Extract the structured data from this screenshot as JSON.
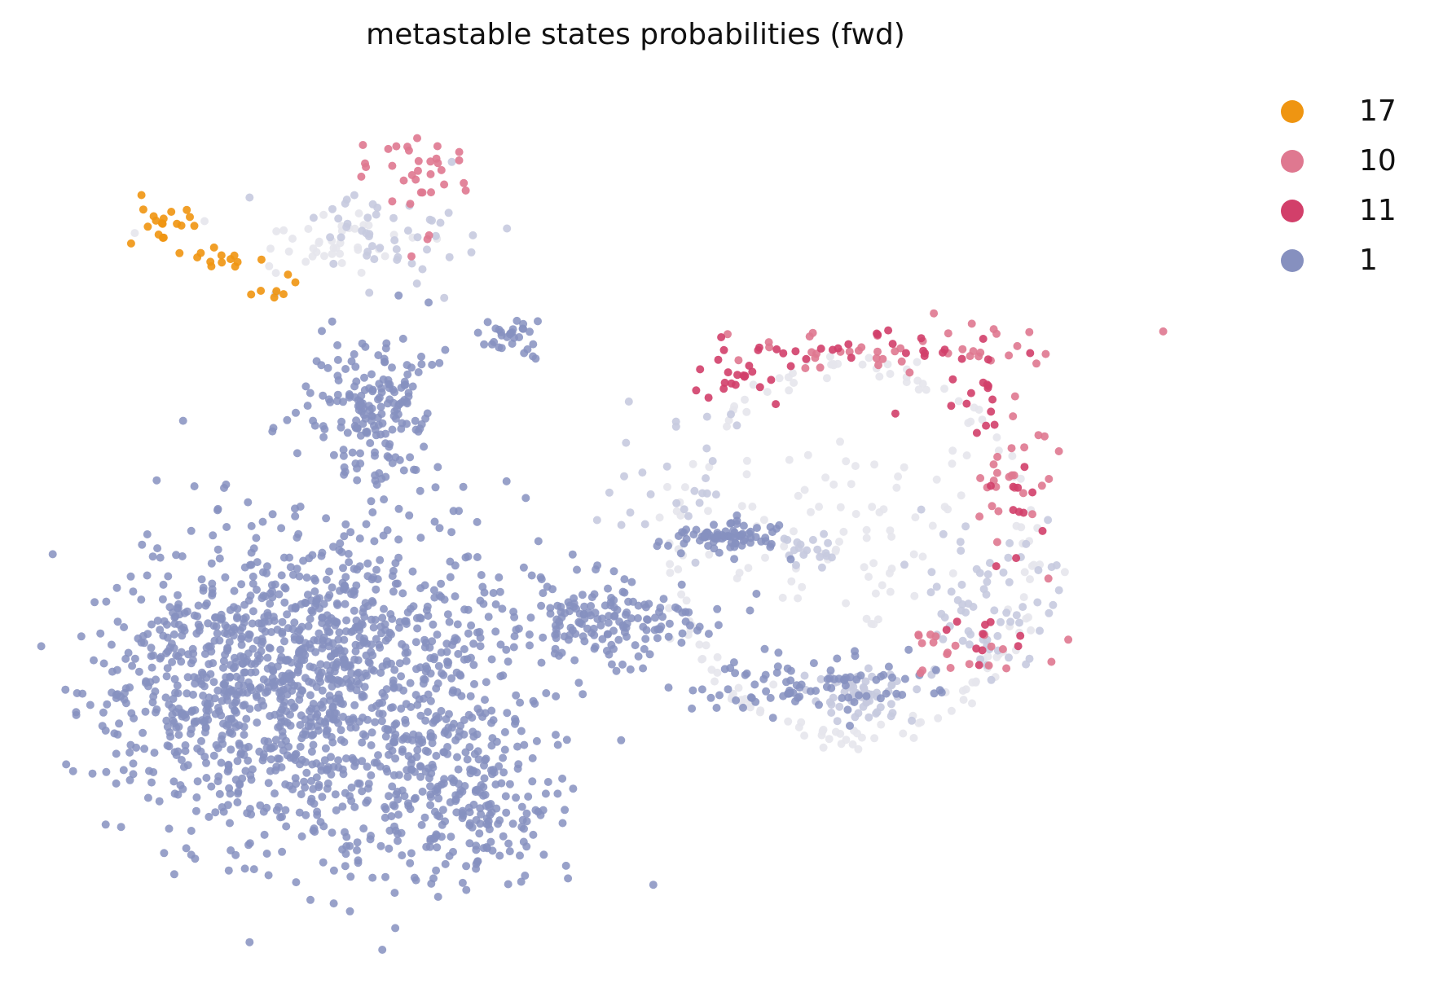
{
  "chart_data": {
    "type": "scatter",
    "title": "metastable states probabilities (fwd)",
    "xlabel": "",
    "ylabel": "",
    "grid": false,
    "legend_placement": "right",
    "legend": [
      {
        "label": "17",
        "color": "#ef9511"
      },
      {
        "label": "10",
        "color": "#df7890"
      },
      {
        "label": "11",
        "color": "#d23f6a"
      },
      {
        "label": "1",
        "color": "#8690bf"
      }
    ],
    "xlim": [
      0,
      100
    ],
    "ylim": [
      0,
      100
    ],
    "series": [
      {
        "name": "17",
        "color": "#ef9511",
        "regions": [
          {
            "cx": 8.2,
            "cy": 80.5,
            "sx": 1.0,
            "sy": 1.5,
            "n": 18
          },
          {
            "cx": 12.5,
            "cy": 76.0,
            "sx": 2.2,
            "sy": 1.0,
            "n": 14
          },
          {
            "cx": 17.5,
            "cy": 73.0,
            "sx": 1.2,
            "sy": 0.6,
            "n": 6
          }
        ]
      },
      {
        "name": "10",
        "color": "#df7890",
        "regions": [
          {
            "cx": 29.5,
            "cy": 86.5,
            "sx": 2.3,
            "sy": 3.5,
            "n": 34
          },
          {
            "cx": 68.0,
            "cy": 66.0,
            "sx": 9.5,
            "sy": 2.0,
            "n": 40
          },
          {
            "cx": 79.5,
            "cy": 54.0,
            "sx": 2.0,
            "sy": 6.0,
            "n": 30
          },
          {
            "cx": 76.0,
            "cy": 33.0,
            "sx": 4.0,
            "sy": 2.0,
            "n": 20
          }
        ]
      },
      {
        "name": "11",
        "color": "#d23f6a",
        "regions": [
          {
            "cx": 56.5,
            "cy": 63.5,
            "sx": 2.0,
            "sy": 1.5,
            "n": 20
          },
          {
            "cx": 67.0,
            "cy": 66.5,
            "sx": 5.5,
            "sy": 1.0,
            "n": 26
          },
          {
            "cx": 76.0,
            "cy": 61.0,
            "sx": 2.0,
            "sy": 2.0,
            "n": 14
          },
          {
            "cx": 80.0,
            "cy": 49.0,
            "sx": 1.0,
            "sy": 5.0,
            "n": 12
          },
          {
            "cx": 78.0,
            "cy": 34.5,
            "sx": 2.0,
            "sy": 1.5,
            "n": 10
          }
        ]
      },
      {
        "name": "1",
        "color": "#8690bf",
        "regions": [
          {
            "cx": 22.0,
            "cy": 30.0,
            "sx": 8.0,
            "sy": 9.5,
            "n": 1100
          },
          {
            "cx": 12.0,
            "cy": 28.0,
            "sx": 4.5,
            "sy": 6.0,
            "n": 260
          },
          {
            "cx": 33.0,
            "cy": 17.0,
            "sx": 5.0,
            "sy": 5.0,
            "n": 240
          },
          {
            "cx": 26.0,
            "cy": 60.0,
            "sx": 2.5,
            "sy": 4.5,
            "n": 180
          },
          {
            "cx": 37.5,
            "cy": 68.0,
            "sx": 1.5,
            "sy": 1.5,
            "n": 30
          },
          {
            "cx": 45.0,
            "cy": 36.0,
            "sx": 4.5,
            "sy": 2.5,
            "n": 170
          },
          {
            "cx": 55.5,
            "cy": 45.5,
            "sx": 2.3,
            "sy": 0.8,
            "n": 80
          },
          {
            "cx": 63.0,
            "cy": 29.0,
            "sx": 5.0,
            "sy": 1.8,
            "n": 90
          }
        ]
      },
      {
        "name": "",
        "color": "#c6cadf",
        "regions": [
          {
            "cx": 67.0,
            "cy": 28.0,
            "sx": 2.5,
            "sy": 1.2,
            "n": 60
          },
          {
            "cx": 77.5,
            "cy": 38.0,
            "sx": 3.0,
            "sy": 4.5,
            "n": 70
          },
          {
            "cx": 62.0,
            "cy": 44.0,
            "sx": 1.5,
            "sy": 1.0,
            "n": 20
          },
          {
            "cx": 27.0,
            "cy": 79.0,
            "sx": 4.0,
            "sy": 3.0,
            "n": 50
          },
          {
            "cx": 51.0,
            "cy": 52.0,
            "sx": 2.5,
            "sy": 4.0,
            "n": 30
          }
        ]
      },
      {
        "name": "",
        "color": "#e6e6ec",
        "ring": {
          "cx": 66.0,
          "cy": 44.0,
          "rx": 15.0,
          "ry": 21.0,
          "n": 150
        },
        "regions": [
          {
            "cx": 66.0,
            "cy": 46.0,
            "sx": 6.5,
            "sy": 6.0,
            "n": 80
          },
          {
            "cx": 22.0,
            "cy": 78.5,
            "sx": 4.0,
            "sy": 2.0,
            "n": 40
          }
        ]
      }
    ]
  }
}
